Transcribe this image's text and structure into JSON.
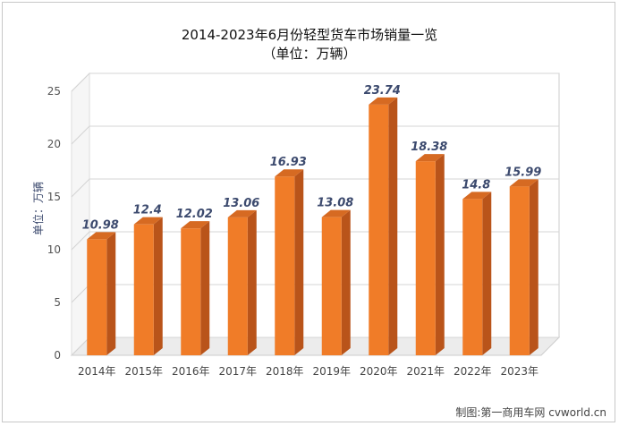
{
  "chart_data": {
    "type": "bar",
    "title": "2014-2023年6月份轻型货车市场销量一览",
    "subtitle": "（单位：万辆）",
    "xlabel": "",
    "ylabel": "单位：万辆",
    "categories": [
      "2014年",
      "2015年",
      "2016年",
      "2017年",
      "2018年",
      "2019年",
      "2020年",
      "2021年",
      "2022年",
      "2023年"
    ],
    "values": [
      10.98,
      12.4,
      12.02,
      13.06,
      16.93,
      13.08,
      23.74,
      18.38,
      14.8,
      15.99
    ],
    "data_labels": [
      "10.98",
      "12.4",
      "12.02",
      "13.06",
      "16.93",
      "13.08",
      "23.74",
      "18.38",
      "14.8",
      "15.99"
    ],
    "ylim": [
      0,
      25
    ],
    "yticks": [
      "0",
      "5",
      "10",
      "15",
      "20",
      "25"
    ],
    "grid": true,
    "colors": {
      "bar_front": "#f07c28",
      "bar_side": "#b9541a",
      "bar_top": "#d66a22"
    }
  },
  "credit": "制图:第一商用车网 cvworld.cn"
}
